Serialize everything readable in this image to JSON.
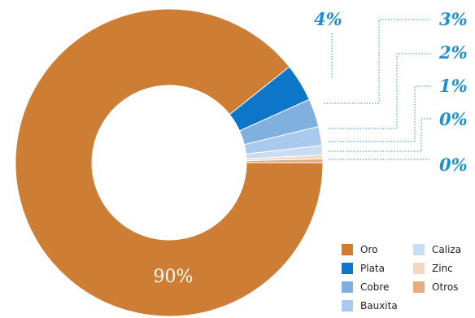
{
  "chart_data": {
    "type": "pie",
    "donut": true,
    "categories": [
      "Oro",
      "Plata",
      "Cobre",
      "Bauxita",
      "Caliza",
      "Zinc",
      "Otros"
    ],
    "values": [
      90,
      4,
      3,
      2,
      1,
      0.4,
      0.4
    ],
    "colors": [
      "#cd7d34",
      "#0e76c9",
      "#7fb0e0",
      "#a9c9ee",
      "#c8dcf3",
      "#f5d6c2",
      "#e6ac80"
    ],
    "labels": [
      {
        "text": "90%",
        "series": "Oro"
      },
      {
        "text": "4%",
        "series": "Plata"
      },
      {
        "text": "3%",
        "series": "Cobre"
      },
      {
        "text": "2%",
        "series": "Bauxita"
      },
      {
        "text": "1%",
        "series": "Caliza"
      },
      {
        "text": "0%",
        "series": "Zinc"
      },
      {
        "text": "0%",
        "series": "Otros"
      }
    ],
    "legend_position": "bottom-right"
  }
}
